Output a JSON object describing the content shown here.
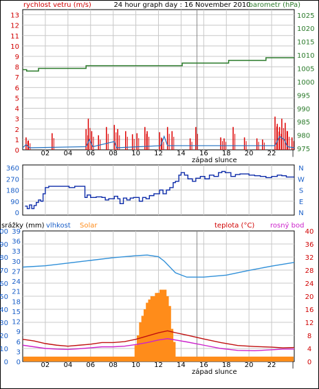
{
  "header": {
    "title": "24 hour graph day : 16 November 2010",
    "left_label": "rychlost vetru (m/s)",
    "right_label": "barometr (hPa)"
  },
  "hours": [
    "02",
    "04",
    "06",
    "08",
    "10",
    "12",
    "14",
    "16",
    "18",
    "20",
    "22"
  ],
  "marker_label": "západ slunce",
  "panel3_labels": {
    "rain": "srážky (mm)",
    "humidity": "vlhkost",
    "solar": "Solar",
    "temp": "teplota (°C)",
    "dew": "rosný bod"
  },
  "colors": {
    "grid": "#c8c8c8",
    "wind_gust": "#dd0000",
    "wind_avg": "#1e6fc0",
    "baro": "#2a7a2a",
    "direction": "#0b2aa8",
    "humidity": "#2f8fd8",
    "solar": "#ff8c1a",
    "temp": "#c01010",
    "dew": "#cc22cc",
    "axis_red": "#d00000",
    "axis_green": "#2a7a2a",
    "axis_blue": "#1a5fc8",
    "axis_orange": "#ff8c1a",
    "axis_magenta": "#cc22cc"
  },
  "chart_data": [
    {
      "type": "line",
      "name": "wind_baro",
      "x_range": [
        0,
        24
      ],
      "left_axis": {
        "ticks": [
          0,
          1,
          2,
          3,
          4,
          5,
          6,
          7,
          8,
          9,
          10,
          11,
          12,
          13
        ],
        "ylim": [
          0,
          13.5
        ]
      },
      "right_axis": {
        "ticks": [
          975,
          980,
          985,
          990,
          995,
          1000,
          1005,
          1010,
          1015,
          1020,
          1025
        ],
        "ylim": [
          974.5,
          1027
        ]
      },
      "barometer": [
        [
          0,
          1004.5
        ],
        [
          0.35,
          1004
        ],
        [
          1.2,
          1004
        ],
        [
          1.4,
          1005
        ],
        [
          5.3,
          1005
        ],
        [
          5.6,
          1006
        ],
        [
          13.8,
          1006
        ],
        [
          14.1,
          1007
        ],
        [
          17.8,
          1007
        ],
        [
          18.2,
          1008
        ],
        [
          21.2,
          1008
        ],
        [
          21.5,
          1009
        ],
        [
          24,
          1009
        ]
      ],
      "wind_gust_points": [
        [
          0.3,
          1.2
        ],
        [
          0.5,
          0.9
        ],
        [
          2.6,
          1.6
        ],
        [
          5.6,
          2.0
        ],
        [
          5.8,
          3.0
        ],
        [
          6.1,
          1.8
        ],
        [
          6.7,
          1.4
        ],
        [
          7.4,
          2.2
        ],
        [
          8.1,
          2.4
        ],
        [
          8.4,
          2.0
        ],
        [
          9.1,
          1.8
        ],
        [
          9.7,
          1.5
        ],
        [
          10.1,
          1.6
        ],
        [
          10.8,
          2.2
        ],
        [
          11.0,
          1.8
        ],
        [
          12.1,
          1.7
        ],
        [
          12.3,
          1.1
        ],
        [
          12.8,
          2.2
        ],
        [
          13.2,
          1.8
        ],
        [
          14.8,
          1.1
        ],
        [
          15.3,
          2.2
        ],
        [
          17.5,
          1.2
        ],
        [
          17.8,
          1.1
        ],
        [
          18.6,
          2.2
        ],
        [
          19.6,
          1.2
        ],
        [
          20.7,
          1.1
        ],
        [
          21.2,
          1.0
        ],
        [
          22.3,
          3.2
        ],
        [
          22.5,
          2.5
        ],
        [
          22.7,
          2.2
        ],
        [
          22.9,
          3.0
        ],
        [
          23.2,
          2.6
        ],
        [
          23.4,
          1.8
        ],
        [
          23.8,
          1.2
        ]
      ],
      "wind_avg_points": [
        [
          0,
          0.2
        ],
        [
          0.3,
          0.5
        ],
        [
          0.6,
          0.2
        ],
        [
          5.6,
          0.3
        ],
        [
          5.9,
          1.0
        ],
        [
          6.2,
          0.3
        ],
        [
          8.1,
          0.8
        ],
        [
          8.3,
          0.2
        ],
        [
          12.2,
          0.4
        ],
        [
          12.5,
          1.3
        ],
        [
          12.8,
          0.4
        ],
        [
          22.3,
          0.4
        ],
        [
          22.7,
          1.3
        ],
        [
          23.1,
          1.0
        ],
        [
          23.4,
          0.3
        ],
        [
          24,
          0.2
        ]
      ],
      "marker_x": 15.4
    },
    {
      "type": "line",
      "name": "wind_direction",
      "x_range": [
        0,
        24
      ],
      "y_ticks": [
        0,
        90,
        180,
        270,
        360
      ],
      "ylim": [
        0,
        360
      ],
      "compass": [
        "N",
        "W",
        "S",
        "E",
        "N"
      ],
      "points": [
        [
          0.2,
          50
        ],
        [
          0.4,
          30
        ],
        [
          0.6,
          60
        ],
        [
          0.8,
          30
        ],
        [
          1.0,
          55
        ],
        [
          1.2,
          80
        ],
        [
          1.4,
          100
        ],
        [
          1.6,
          90
        ],
        [
          1.8,
          150
        ],
        [
          2.0,
          200
        ],
        [
          2.3,
          210
        ],
        [
          3.8,
          210
        ],
        [
          4.1,
          200
        ],
        [
          4.6,
          210
        ],
        [
          5.3,
          210
        ],
        [
          5.5,
          120
        ],
        [
          5.7,
          140
        ],
        [
          6.0,
          120
        ],
        [
          6.5,
          125
        ],
        [
          7.0,
          120
        ],
        [
          7.3,
          100
        ],
        [
          7.6,
          110
        ],
        [
          8.1,
          130
        ],
        [
          8.4,
          110
        ],
        [
          8.6,
          70
        ],
        [
          8.9,
          115
        ],
        [
          9.2,
          100
        ],
        [
          9.5,
          115
        ],
        [
          9.8,
          120
        ],
        [
          10.3,
          90
        ],
        [
          10.6,
          120
        ],
        [
          10.9,
          110
        ],
        [
          11.2,
          135
        ],
        [
          11.6,
          150
        ],
        [
          12.1,
          180
        ],
        [
          12.4,
          150
        ],
        [
          12.7,
          180
        ],
        [
          13.0,
          200
        ],
        [
          13.3,
          240
        ],
        [
          13.5,
          250
        ],
        [
          13.8,
          300
        ],
        [
          14.0,
          320
        ],
        [
          14.3,
          300
        ],
        [
          14.6,
          270
        ],
        [
          15.0,
          250
        ],
        [
          15.3,
          275
        ],
        [
          15.7,
          290
        ],
        [
          16.1,
          270
        ],
        [
          16.5,
          300
        ],
        [
          16.9,
          290
        ],
        [
          17.3,
          320
        ],
        [
          17.6,
          330
        ],
        [
          17.9,
          320
        ],
        [
          18.4,
          290
        ],
        [
          18.8,
          305
        ],
        [
          19.2,
          310
        ],
        [
          20.0,
          300
        ],
        [
          20.5,
          295
        ],
        [
          21.0,
          290
        ],
        [
          21.5,
          280
        ],
        [
          22.0,
          290
        ],
        [
          22.5,
          300
        ],
        [
          22.9,
          295
        ],
        [
          23.3,
          285
        ],
        [
          24,
          285
        ]
      ]
    },
    {
      "type": "line",
      "name": "humidity_temp",
      "x_range": [
        0,
        24
      ],
      "left_axis": {
        "ticks": [
          0,
          10,
          20,
          30,
          40,
          50,
          60,
          70,
          80,
          90,
          100
        ],
        "ylim": [
          0,
          100
        ]
      },
      "humidity_axis": {
        "ticks": [
          0,
          3,
          6,
          9,
          12,
          15,
          18,
          21,
          24,
          27,
          30,
          33,
          36,
          39
        ],
        "ylim": [
          0,
          39
        ]
      },
      "right_axis": {
        "ticks": [
          0,
          4,
          8,
          12,
          16,
          20,
          24,
          28,
          32,
          36,
          40
        ],
        "ylim": [
          0,
          40
        ]
      },
      "humidity": [
        [
          0,
          28.2
        ],
        [
          2,
          28.6
        ],
        [
          4,
          29.4
        ],
        [
          6,
          30.2
        ],
        [
          8,
          31.0
        ],
        [
          10,
          31.6
        ],
        [
          11,
          31.8
        ],
        [
          12,
          31.3
        ],
        [
          12.5,
          30.0
        ],
        [
          13.5,
          26.5
        ],
        [
          14.5,
          25.2
        ],
        [
          16,
          25.2
        ],
        [
          18,
          25.8
        ],
        [
          20,
          27.2
        ],
        [
          22,
          28.5
        ],
        [
          24,
          29.6
        ]
      ],
      "temperature": [
        [
          0,
          6.8
        ],
        [
          1,
          6.3
        ],
        [
          2,
          5.5
        ],
        [
          3,
          5.0
        ],
        [
          4,
          4.7
        ],
        [
          5,
          5.0
        ],
        [
          6,
          5.3
        ],
        [
          7,
          5.8
        ],
        [
          8,
          5.8
        ],
        [
          9,
          6.1
        ],
        [
          10,
          6.8
        ],
        [
          11,
          7.8
        ],
        [
          12,
          8.8
        ],
        [
          12.8,
          9.4
        ],
        [
          13.4,
          8.9
        ],
        [
          14.5,
          8.1
        ],
        [
          16,
          6.9
        ],
        [
          17.5,
          5.8
        ],
        [
          19,
          4.9
        ],
        [
          20.5,
          4.6
        ],
        [
          22,
          4.4
        ],
        [
          23,
          4.2
        ],
        [
          24,
          4.3
        ]
      ],
      "dew_point": [
        [
          0,
          5.0
        ],
        [
          1,
          4.5
        ],
        [
          2,
          4.0
        ],
        [
          3,
          3.8
        ],
        [
          4,
          3.7
        ],
        [
          5,
          3.9
        ],
        [
          6,
          4.2
        ],
        [
          7,
          4.5
        ],
        [
          8,
          4.5
        ],
        [
          9,
          4.7
        ],
        [
          10,
          5.2
        ],
        [
          11,
          5.8
        ],
        [
          12,
          6.6
        ],
        [
          12.8,
          7.0
        ],
        [
          13.5,
          6.6
        ],
        [
          14.5,
          6.0
        ],
        [
          16,
          5.0
        ],
        [
          17.5,
          4.0
        ],
        [
          19,
          3.4
        ],
        [
          20.5,
          3.3
        ],
        [
          22,
          3.6
        ],
        [
          23,
          3.8
        ],
        [
          24,
          3.8
        ]
      ],
      "solar_bins": [
        [
          10.1,
          5
        ],
        [
          10.3,
          8
        ],
        [
          10.5,
          12
        ],
        [
          10.7,
          14
        ],
        [
          10.9,
          16
        ],
        [
          11.1,
          18
        ],
        [
          11.3,
          19
        ],
        [
          11.5,
          20
        ],
        [
          11.7,
          20
        ],
        [
          11.9,
          21
        ],
        [
          12.1,
          21
        ],
        [
          12.3,
          22
        ],
        [
          12.5,
          22
        ],
        [
          12.7,
          20
        ],
        [
          12.9,
          17
        ],
        [
          13.1,
          10
        ],
        [
          13.3,
          6
        ]
      ],
      "solar_base": 1.5,
      "marker_x": 15.4
    }
  ]
}
